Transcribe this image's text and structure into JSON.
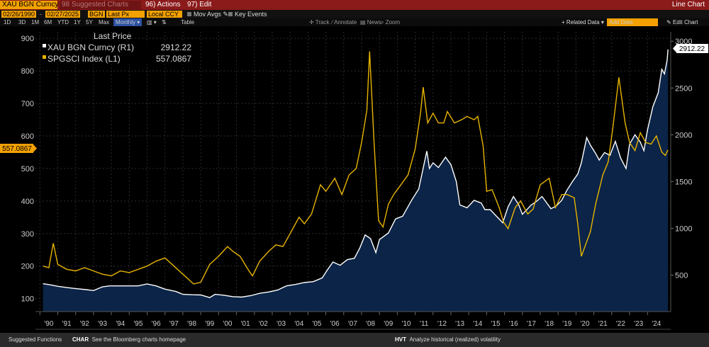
{
  "header": {
    "ticker": "XAU BGN Curncy",
    "suggested": "98 Suggested Charts",
    "actions": "96) Actions",
    "edit": "97) Edit",
    "window_title": "Line Chart"
  },
  "toolbar": {
    "start_date": "02/26/1990",
    "end_date": "02/27/2025",
    "source": "BGN",
    "field": "Last Px",
    "currency": "Local CCY",
    "mov_avgs": "Mov Avgs",
    "key_events": "Key Events"
  },
  "periods": [
    "1D",
    "3D",
    "1M",
    "6M",
    "YTD",
    "1Y",
    "5Y",
    "Max"
  ],
  "frequency": "Monthly",
  "table_label": "Table",
  "tools": [
    "Track",
    "Annotate",
    "News",
    "Zoom"
  ],
  "related_data": "Related Data",
  "add_data": "Add Data",
  "edit_chart": "Edit Chart",
  "legend": {
    "heading": "Last Price",
    "items": [
      {
        "label": "XAU BGN Curncy  (R1)",
        "value": "2912.22",
        "color": "#ffffff"
      },
      {
        "label": "SPGSCI Index  (L1)",
        "value": "557.0867",
        "color": "#e8b400"
      }
    ]
  },
  "footer": {
    "suggested_label": "Suggested Functions",
    "items": [
      {
        "code": "CHAR",
        "text": "See the Bloomberg charts homepage"
      },
      {
        "code": "HVT",
        "text": "Analyze historical (realized) volatility"
      }
    ]
  },
  "colors": {
    "gold_line": "#ffffff",
    "gsci_line": "#e8b400",
    "area_fill": "#0b2447",
    "accent": "#f2a100"
  },
  "chart_data": {
    "type": "line",
    "x_tick_labels": [
      "'90",
      "'91",
      "'92",
      "'93",
      "'94",
      "'95",
      "'96",
      "'97",
      "'98",
      "'99",
      "'00",
      "'01",
      "'02",
      "'03",
      "'04",
      "'05",
      "'06",
      "'07",
      "'08",
      "'09",
      "'10",
      "'11",
      "'12",
      "'13",
      "'14",
      "'15",
      "'16",
      "'17",
      "'18",
      "'19",
      "'20",
      "'21",
      "'22",
      "'23",
      "'24"
    ],
    "left_axis": {
      "ticks": [
        100,
        200,
        300,
        400,
        500,
        600,
        700,
        800,
        900
      ],
      "range": [
        60,
        920
      ]
    },
    "right_axis": {
      "ticks": [
        500,
        1000,
        1500,
        2000,
        2500,
        3000
      ],
      "range": [
        110,
        3100
      ]
    },
    "series": [
      {
        "name": "XAU BGN Curncy",
        "axis": "right",
        "last_value": "2912.22",
        "points": [
          [
            1990.17,
            408
          ],
          [
            1990.6,
            395
          ],
          [
            1991.0,
            380
          ],
          [
            1991.6,
            365
          ],
          [
            1992.0,
            355
          ],
          [
            1992.6,
            345
          ],
          [
            1993.0,
            335
          ],
          [
            1993.5,
            375
          ],
          [
            1993.9,
            385
          ],
          [
            1994.5,
            385
          ],
          [
            1995.0,
            385
          ],
          [
            1995.5,
            385
          ],
          [
            1996.0,
            405
          ],
          [
            1996.5,
            385
          ],
          [
            1997.0,
            350
          ],
          [
            1997.6,
            325
          ],
          [
            1998.0,
            295
          ],
          [
            1998.5,
            290
          ],
          [
            1999.0,
            288
          ],
          [
            1999.5,
            260
          ],
          [
            1999.8,
            295
          ],
          [
            2000.3,
            285
          ],
          [
            2000.8,
            270
          ],
          [
            2001.3,
            265
          ],
          [
            2001.8,
            280
          ],
          [
            2002.3,
            305
          ],
          [
            2002.8,
            320
          ],
          [
            2003.3,
            340
          ],
          [
            2003.8,
            385
          ],
          [
            2004.3,
            400
          ],
          [
            2004.8,
            420
          ],
          [
            2005.3,
            430
          ],
          [
            2005.8,
            470
          ],
          [
            2006.1,
            560
          ],
          [
            2006.4,
            640
          ],
          [
            2006.8,
            605
          ],
          [
            2007.2,
            665
          ],
          [
            2007.6,
            680
          ],
          [
            2007.9,
            790
          ],
          [
            2008.2,
            930
          ],
          [
            2008.5,
            890
          ],
          [
            2008.8,
            740
          ],
          [
            2009.0,
            880
          ],
          [
            2009.5,
            950
          ],
          [
            2009.9,
            1100
          ],
          [
            2010.3,
            1130
          ],
          [
            2010.8,
            1300
          ],
          [
            2011.2,
            1420
          ],
          [
            2011.65,
            1825
          ],
          [
            2011.8,
            1640
          ],
          [
            2012.0,
            1700
          ],
          [
            2012.3,
            1650
          ],
          [
            2012.7,
            1760
          ],
          [
            2013.0,
            1680
          ],
          [
            2013.3,
            1500
          ],
          [
            2013.5,
            1250
          ],
          [
            2013.9,
            1220
          ],
          [
            2014.3,
            1300
          ],
          [
            2014.7,
            1270
          ],
          [
            2014.9,
            1200
          ],
          [
            2015.2,
            1200
          ],
          [
            2015.6,
            1120
          ],
          [
            2015.9,
            1060
          ],
          [
            2016.2,
            1230
          ],
          [
            2016.5,
            1340
          ],
          [
            2016.8,
            1250
          ],
          [
            2017.0,
            1150
          ],
          [
            2017.5,
            1250
          ],
          [
            2017.8,
            1290
          ],
          [
            2018.1,
            1340
          ],
          [
            2018.6,
            1210
          ],
          [
            2018.9,
            1240
          ],
          [
            2019.2,
            1300
          ],
          [
            2019.5,
            1410
          ],
          [
            2019.8,
            1500
          ],
          [
            2020.1,
            1580
          ],
          [
            2020.3,
            1700
          ],
          [
            2020.6,
            1970
          ],
          [
            2020.8,
            1890
          ],
          [
            2021.1,
            1800
          ],
          [
            2021.3,
            1730
          ],
          [
            2021.6,
            1810
          ],
          [
            2021.9,
            1780
          ],
          [
            2022.2,
            1930
          ],
          [
            2022.5,
            1750
          ],
          [
            2022.8,
            1640
          ],
          [
            2023.0,
            1900
          ],
          [
            2023.3,
            2000
          ],
          [
            2023.6,
            1920
          ],
          [
            2023.8,
            1830
          ],
          [
            2024.0,
            2050
          ],
          [
            2024.3,
            2300
          ],
          [
            2024.6,
            2450
          ],
          [
            2024.8,
            2700
          ],
          [
            2024.95,
            2650
          ],
          [
            2025.1,
            2800
          ],
          [
            2025.15,
            2912.22
          ]
        ]
      },
      {
        "name": "SPGSCI Index",
        "axis": "left",
        "last_value": "557.0867",
        "points": [
          [
            1990.17,
            200
          ],
          [
            1990.5,
            195
          ],
          [
            1990.75,
            270
          ],
          [
            1991.0,
            205
          ],
          [
            1991.5,
            190
          ],
          [
            1992.0,
            185
          ],
          [
            1992.5,
            195
          ],
          [
            1993.0,
            185
          ],
          [
            1993.5,
            175
          ],
          [
            1994.0,
            170
          ],
          [
            1994.5,
            185
          ],
          [
            1995.0,
            180
          ],
          [
            1995.5,
            190
          ],
          [
            1996.0,
            200
          ],
          [
            1996.5,
            215
          ],
          [
            1997.0,
            225
          ],
          [
            1997.5,
            200
          ],
          [
            1998.0,
            175
          ],
          [
            1998.6,
            145
          ],
          [
            1999.0,
            150
          ],
          [
            1999.5,
            205
          ],
          [
            2000.0,
            230
          ],
          [
            2000.5,
            260
          ],
          [
            2000.8,
            245
          ],
          [
            2001.2,
            230
          ],
          [
            2001.7,
            185
          ],
          [
            2001.9,
            170
          ],
          [
            2002.3,
            215
          ],
          [
            2002.8,
            245
          ],
          [
            2003.2,
            265
          ],
          [
            2003.6,
            260
          ],
          [
            2004.0,
            300
          ],
          [
            2004.5,
            350
          ],
          [
            2004.8,
            330
          ],
          [
            2005.2,
            360
          ],
          [
            2005.7,
            450
          ],
          [
            2006.0,
            430
          ],
          [
            2006.5,
            470
          ],
          [
            2006.9,
            420
          ],
          [
            2007.3,
            480
          ],
          [
            2007.7,
            500
          ],
          [
            2008.0,
            580
          ],
          [
            2008.3,
            680
          ],
          [
            2008.45,
            860
          ],
          [
            2008.7,
            580
          ],
          [
            2008.95,
            340
          ],
          [
            2009.2,
            320
          ],
          [
            2009.5,
            390
          ],
          [
            2009.8,
            420
          ],
          [
            2010.2,
            450
          ],
          [
            2010.6,
            480
          ],
          [
            2011.0,
            560
          ],
          [
            2011.3,
            670
          ],
          [
            2011.45,
            750
          ],
          [
            2011.7,
            640
          ],
          [
            2012.0,
            670
          ],
          [
            2012.3,
            640
          ],
          [
            2012.6,
            640
          ],
          [
            2012.8,
            675
          ],
          [
            2013.2,
            640
          ],
          [
            2013.6,
            650
          ],
          [
            2013.9,
            660
          ],
          [
            2014.3,
            650
          ],
          [
            2014.5,
            660
          ],
          [
            2014.8,
            570
          ],
          [
            2015.0,
            430
          ],
          [
            2015.3,
            435
          ],
          [
            2015.7,
            380
          ],
          [
            2015.95,
            335
          ],
          [
            2016.2,
            315
          ],
          [
            2016.6,
            380
          ],
          [
            2016.9,
            400
          ],
          [
            2017.3,
            360
          ],
          [
            2017.6,
            375
          ],
          [
            2018.0,
            450
          ],
          [
            2018.5,
            470
          ],
          [
            2018.85,
            380
          ],
          [
            2019.2,
            420
          ],
          [
            2019.5,
            420
          ],
          [
            2019.9,
            410
          ],
          [
            2020.1,
            330
          ],
          [
            2020.3,
            230
          ],
          [
            2020.5,
            260
          ],
          [
            2020.8,
            305
          ],
          [
            2021.1,
            390
          ],
          [
            2021.5,
            480
          ],
          [
            2021.8,
            520
          ],
          [
            2022.05,
            620
          ],
          [
            2022.4,
            780
          ],
          [
            2022.75,
            640
          ],
          [
            2023.0,
            580
          ],
          [
            2023.3,
            555
          ],
          [
            2023.6,
            610
          ],
          [
            2023.9,
            580
          ],
          [
            2024.2,
            575
          ],
          [
            2024.5,
            600
          ],
          [
            2024.8,
            550
          ],
          [
            2025.0,
            540
          ],
          [
            2025.15,
            557.0867
          ]
        ]
      }
    ]
  }
}
